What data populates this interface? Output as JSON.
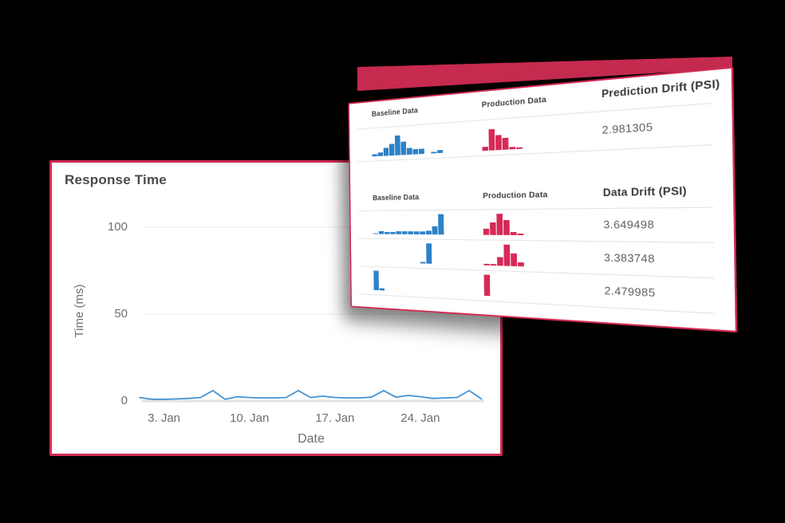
{
  "colors": {
    "background": "#000000",
    "accent": "#d22b54",
    "wedge": "#c62a4f",
    "baseline_blue": "#2d81c8",
    "production_red": "#d62a56",
    "line_blue": "#4593d2"
  },
  "response_card": {
    "title": "Response Time"
  },
  "chart_data": [
    {
      "type": "line",
      "title": "Response Time",
      "xlabel": "Date",
      "ylabel": "Time (ms)",
      "x_unit": "day of January",
      "x": [
        1,
        2,
        3,
        4,
        5,
        6,
        7,
        8,
        9,
        10,
        11,
        12,
        13,
        14,
        15,
        16,
        17,
        18,
        19,
        20,
        21,
        22,
        23,
        24,
        25,
        26,
        27,
        28,
        29
      ],
      "values": [
        2,
        1,
        1,
        1.2,
        1.5,
        2,
        6,
        1,
        2.5,
        2,
        1.8,
        1.8,
        2,
        6,
        2,
        2.8,
        2,
        1.8,
        1.8,
        2.2,
        6,
        2.2,
        3.2,
        2.5,
        1.5,
        1.8,
        2,
        6,
        1.2
      ],
      "yticks": [
        0,
        50,
        100
      ],
      "xticks": [
        {
          "day": 3,
          "label": "3. Jan"
        },
        {
          "day": 10,
          "label": "10. Jan"
        },
        {
          "day": 17,
          "label": "17. Jan"
        },
        {
          "day": 24,
          "label": "24. Jan"
        }
      ],
      "ylim": [
        0,
        100
      ],
      "grid": true,
      "legend": false
    },
    {
      "type": "table",
      "title": "Prediction Drift",
      "columns": [
        "Baseline Data",
        "Production Data",
        "Prediction Drift (PSI)"
      ],
      "rows": [
        {
          "baseline_hist": [
            1,
            2,
            4,
            6,
            10,
            6.5,
            3.5,
            2.5,
            2.5,
            0,
            0.8,
            1.5
          ],
          "production_hist": [
            2,
            10,
            7,
            5.5,
            1.2,
            0.8
          ],
          "value": "2.981305"
        }
      ]
    },
    {
      "type": "table",
      "title": "Data Drift",
      "columns": [
        "Baseline Data",
        "Production Data",
        "Data Drift (PSI)"
      ],
      "rows": [
        {
          "baseline_hist": [
            0.5,
            1.5,
            1,
            1,
            1.5,
            1.5,
            1.5,
            1.5,
            1.5,
            2,
            4,
            10
          ],
          "production_hist": [
            3,
            6,
            10,
            7,
            1.5,
            0.8
          ],
          "value": "3.649498"
        },
        {
          "baseline_hist": [
            0,
            0,
            0,
            0,
            0,
            0,
            0,
            0,
            0.8,
            10,
            0,
            0
          ],
          "production_hist": [
            0.8,
            0.8,
            4,
            10,
            6,
            2
          ],
          "value": "3.383748"
        },
        {
          "baseline_hist": [
            10,
            1.2,
            0,
            0,
            0,
            0,
            0,
            0,
            0,
            0,
            0,
            0
          ],
          "production_hist": [
            10,
            0,
            0,
            0,
            0,
            0
          ],
          "value": "2.479985"
        }
      ]
    }
  ]
}
